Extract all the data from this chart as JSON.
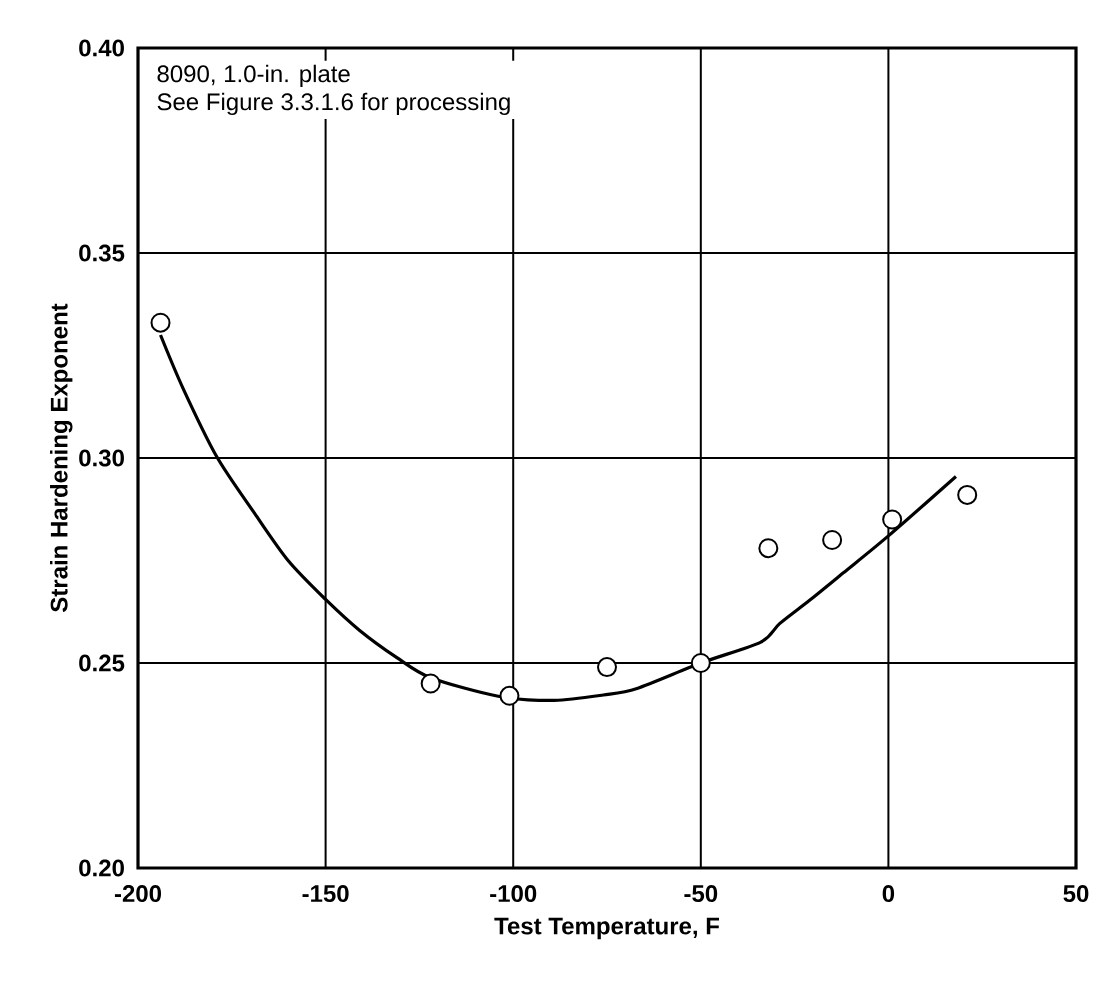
{
  "chart_data": {
    "type": "scatter",
    "xlabel": "Test Temperature, F",
    "ylabel": "Strain Hardening Exponent",
    "annotations": [
      "8090, 1.0-in. plate",
      "See Figure 3.3.1.6 for processing"
    ],
    "xlim": [
      -200,
      50
    ],
    "ylim": [
      0.2,
      0.4
    ],
    "xticks": [
      -200,
      -150,
      -100,
      -50,
      0,
      50
    ],
    "yticks": [
      {
        "value": 0.2,
        "label": "0.20"
      },
      {
        "value": 0.25,
        "label": "0.25"
      },
      {
        "value": 0.3,
        "label": "0.30"
      },
      {
        "value": 0.35,
        "label": "0.35"
      },
      {
        "value": 0.4,
        "label": "0.40"
      }
    ],
    "grid": true,
    "marker": "circle",
    "series": [
      {
        "color": "#000000",
        "x": [
          -194,
          -122,
          -101,
          -75,
          -50,
          -32,
          -15,
          1,
          21
        ],
        "values": [
          0.333,
          0.245,
          0.242,
          0.249,
          0.25,
          0.278,
          0.28,
          0.285,
          0.291
        ]
      },
      {
        "type": "line",
        "color": "#000000",
        "marker": "none",
        "line_style": "solid",
        "x": [
          -194,
          -188,
          -179,
          -169,
          -160,
          -150,
          -141,
          -131,
          -122,
          -104,
          -89,
          -76,
          -67,
          -50,
          -34,
          -29,
          -21,
          -12,
          0,
          18
        ],
        "values": [
          0.33,
          0.317,
          0.3003,
          0.2866,
          0.275,
          0.2655,
          0.258,
          0.2513,
          0.2464,
          0.2419,
          0.2409,
          0.2422,
          0.2438,
          0.25,
          0.2551,
          0.2596,
          0.2653,
          0.272,
          0.281,
          0.2955
        ]
      }
    ]
  }
}
